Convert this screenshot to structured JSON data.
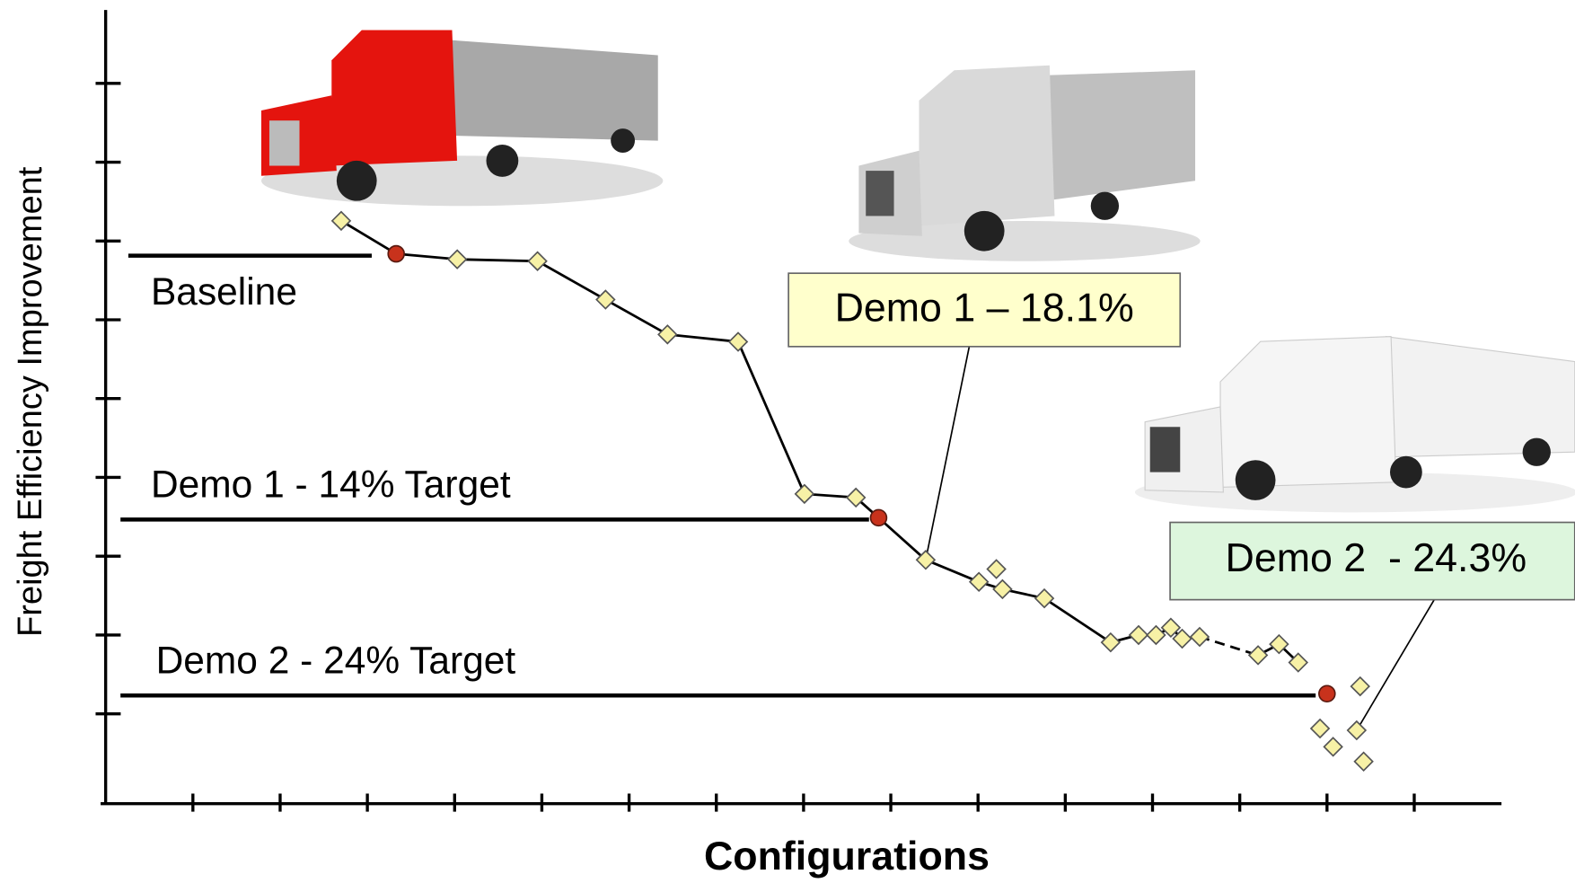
{
  "chart_data": {
    "type": "scatter",
    "y_label": "Freight Efficiency Improvement",
    "x_label": "Configurations",
    "xlim": [
      0,
      16
    ],
    "xticks": [
      1,
      2,
      3,
      4,
      5,
      6,
      7,
      8,
      9,
      10,
      11,
      12,
      13,
      14,
      15
    ],
    "ylim": [
      29.9,
      -13.4
    ],
    "yticks": [
      -9.4,
      -5.1,
      -0.8,
      3.5,
      7.8,
      12.1,
      16.4,
      20.7,
      25.0
    ],
    "line": {
      "color": "#000000",
      "x": [
        2.7,
        3.33,
        4.03,
        4.95,
        5.73,
        6.44,
        7.25,
        8.01,
        8.6,
        8.86,
        9.4,
        10.01,
        10.28,
        10.76,
        11.52,
        11.84,
        12.04,
        12.21,
        12.34,
        12.54,
        null,
        13.21,
        13.45,
        13.67
      ],
      "values": [
        -1.9,
        -0.1,
        0.2,
        0.3,
        2.4,
        4.3,
        4.7,
        13.0,
        13.2,
        14.3,
        16.6,
        17.8,
        18.2,
        18.7,
        21.1,
        20.7,
        20.7,
        20.3,
        20.9,
        20.8,
        null,
        21.8,
        21.2,
        22.2
      ]
    },
    "dashed_line": {
      "color": "#000000",
      "x": [
        12.54,
        13.21
      ],
      "values": [
        20.8,
        21.8
      ]
    },
    "series": [
      {
        "marker": "diamond",
        "color": "#f7f1a6",
        "x": [
          2.7,
          4.03,
          4.95,
          5.73,
          6.44,
          7.25,
          8.01,
          8.6,
          9.4,
          10.01,
          10.21,
          10.28,
          10.76,
          11.52,
          11.84,
          12.04,
          12.21,
          12.34,
          12.54,
          13.21,
          13.45,
          13.67,
          14.38,
          13.92,
          14.07,
          14.34,
          14.42
        ],
        "values": [
          -1.9,
          0.2,
          0.3,
          2.4,
          4.3,
          4.7,
          13.0,
          13.2,
          16.6,
          17.8,
          17.1,
          18.2,
          18.7,
          21.1,
          20.7,
          20.7,
          20.3,
          20.9,
          20.8,
          21.8,
          21.2,
          22.2,
          23.5,
          25.8,
          26.8,
          25.9,
          27.6
        ]
      },
      {
        "marker": "circle",
        "color": "#c8321c",
        "x": [
          3.33,
          8.86,
          14.0
        ],
        "values": [
          -0.1,
          14.3,
          23.9
        ]
      }
    ],
    "reference_lines": [
      {
        "label": "Baseline",
        "value": 0,
        "xrange": [
          0.26,
          3.05
        ]
      },
      {
        "label": "Demo 1 - 14% Target",
        "value": 14.4,
        "xrange": [
          0.17,
          8.75
        ]
      },
      {
        "label": "Demo 2 - 24% Target",
        "value": 24.0,
        "xrange": [
          0.17,
          13.87
        ]
      }
    ],
    "callouts": [
      {
        "label": "Demo 1 – 18.1%",
        "color": "#ffffcc",
        "x": 9.4,
        "value": 16.6
      },
      {
        "label": "Demo 2  - 24.3%",
        "color": "#ddf6dd",
        "x": 14.34,
        "value": 25.9
      }
    ]
  }
}
